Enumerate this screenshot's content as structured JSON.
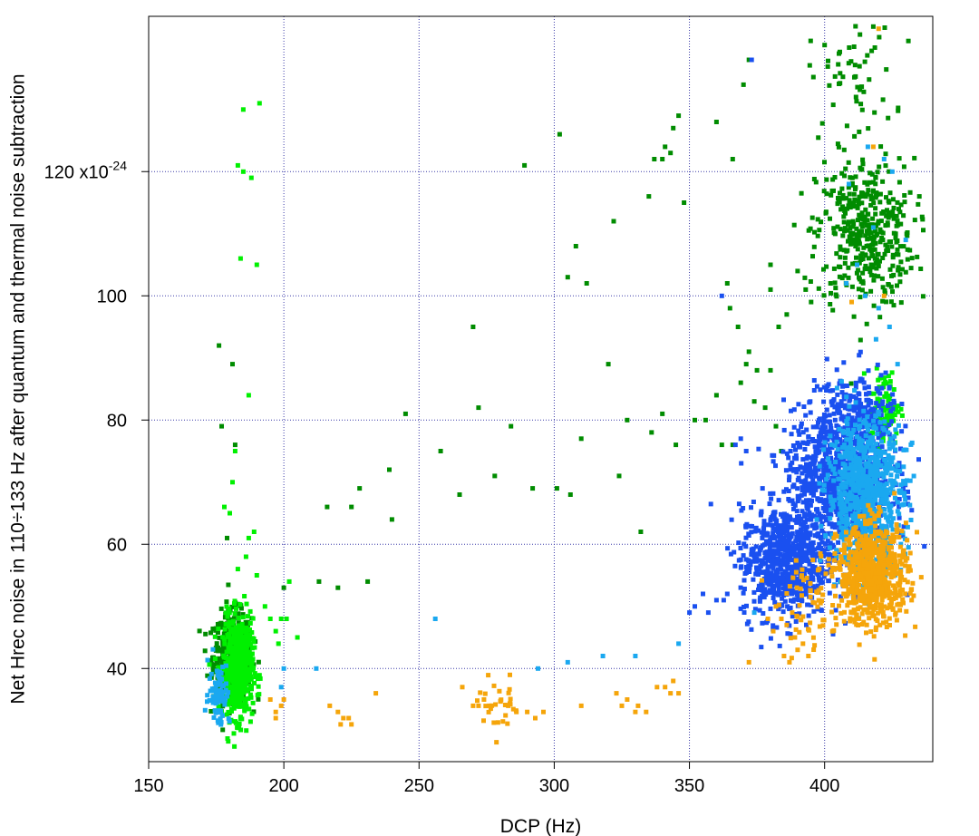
{
  "chart_data": {
    "type": "scatter",
    "title": "",
    "xlabel": "DCP (Hz)",
    "ylabel": "Net Hrec noise in 110÷133 Hz after quantum and thermal noise subtraction",
    "y_multiplier_label": "x10",
    "y_multiplier_exponent": "-24",
    "xlim": [
      150,
      440
    ],
    "ylim": [
      25,
      145
    ],
    "x_ticks": [
      150,
      200,
      250,
      300,
      350,
      400
    ],
    "y_ticks": [
      40,
      60,
      80,
      100,
      120
    ],
    "grid": true,
    "legend": "none",
    "series": [
      {
        "color": "#008c00",
        "clusters": [
          {
            "cx": 181,
            "cy": 42,
            "sx": 3.5,
            "sy": 3.5,
            "n": 500
          },
          {
            "cx": 415,
            "cy": 110,
            "sx": 9,
            "sy": 6,
            "n": 420
          },
          {
            "cx": 410,
            "cy": 135,
            "sx": 8,
            "sy": 5,
            "n": 60
          }
        ],
        "points": [
          [
            289,
            121
          ],
          [
            302,
            126
          ],
          [
            305,
            103
          ],
          [
            308,
            108
          ],
          [
            312,
            102
          ],
          [
            322,
            112
          ],
          [
            335,
            116
          ],
          [
            337,
            122
          ],
          [
            340,
            122
          ],
          [
            343,
            123
          ],
          [
            346,
            129
          ],
          [
            348,
            115
          ],
          [
            344,
            127
          ],
          [
            341,
            124
          ],
          [
            360,
            128
          ],
          [
            366,
            122
          ],
          [
            370,
            134
          ],
          [
            372,
            138
          ],
          [
            364,
            102
          ],
          [
            365,
            98
          ],
          [
            368,
            95
          ],
          [
            372,
            91
          ],
          [
            380,
            101
          ],
          [
            383,
            95
          ],
          [
            386,
            97
          ],
          [
            380,
            88
          ],
          [
            375,
            88
          ],
          [
            369,
            86
          ],
          [
            390,
            104
          ],
          [
            393,
            101
          ],
          [
            395,
            99
          ],
          [
            380,
            105
          ],
          [
            245,
            81
          ],
          [
            258,
            75
          ],
          [
            265,
            68
          ],
          [
            270,
            95
          ],
          [
            272,
            82
          ],
          [
            278,
            71
          ],
          [
            284,
            79
          ],
          [
            292,
            69
          ],
          [
            301,
            69
          ],
          [
            306,
            68
          ],
          [
            310,
            77
          ],
          [
            320,
            89
          ],
          [
            324,
            71
          ],
          [
            327,
            80
          ],
          [
            332,
            62
          ],
          [
            336,
            78
          ],
          [
            340,
            81
          ],
          [
            345,
            76
          ],
          [
            352,
            80
          ],
          [
            356,
            80
          ],
          [
            360,
            84
          ],
          [
            362,
            76
          ],
          [
            366,
            76
          ],
          [
            371,
            89
          ],
          [
            374,
            83
          ],
          [
            378,
            82
          ],
          [
            382,
            79
          ],
          [
            384,
            75
          ],
          [
            200,
            53
          ],
          [
            213,
            54
          ],
          [
            216,
            66
          ],
          [
            220,
            53
          ],
          [
            225,
            66
          ],
          [
            228,
            69
          ],
          [
            231,
            54
          ],
          [
            239,
            72
          ],
          [
            240,
            64
          ],
          [
            176,
            92
          ],
          [
            177,
            79
          ],
          [
            179,
            61
          ],
          [
            181,
            89
          ],
          [
            182,
            76
          ]
        ]
      },
      {
        "color": "#00f000",
        "clusters": [
          {
            "cx": 183,
            "cy": 40,
            "sx": 2.8,
            "sy": 4,
            "n": 600
          },
          {
            "cx": 422,
            "cy": 82,
            "sx": 3,
            "sy": 3,
            "n": 90
          }
        ],
        "points": [
          [
            185,
            130
          ],
          [
            191,
            131
          ],
          [
            183,
            121
          ],
          [
            185,
            120
          ],
          [
            188,
            119
          ],
          [
            184,
            106
          ],
          [
            190,
            105
          ],
          [
            187,
            84
          ],
          [
            182,
            75
          ],
          [
            181,
            70
          ],
          [
            178,
            66
          ],
          [
            180,
            65
          ],
          [
            187,
            61
          ],
          [
            189,
            62
          ],
          [
            195,
            48
          ],
          [
            197,
            46
          ],
          [
            199,
            48
          ],
          [
            201,
            48
          ],
          [
            198,
            44
          ],
          [
            193,
            50
          ],
          [
            205,
            45
          ],
          [
            202,
            54
          ],
          [
            190,
            55
          ],
          [
            186,
            58
          ],
          [
            183,
            56
          ]
        ]
      },
      {
        "color": "#1a50f0",
        "clusters": [
          {
            "cx": 385,
            "cy": 57,
            "sx": 8,
            "sy": 4.5,
            "n": 700
          },
          {
            "cx": 405,
            "cy": 70,
            "sx": 10,
            "sy": 6,
            "n": 950
          },
          {
            "cx": 412,
            "cy": 80,
            "sx": 7,
            "sy": 4,
            "n": 220
          }
        ],
        "points": [
          [
            373,
            138
          ],
          [
            362,
            100
          ],
          [
            360,
            51
          ],
          [
            355,
            52
          ],
          [
            352,
            50
          ],
          [
            350,
            49
          ],
          [
            357,
            49
          ],
          [
            364,
            52
          ],
          [
            367,
            76
          ],
          [
            369,
            77
          ],
          [
            371,
            75
          ],
          [
            390,
            61
          ],
          [
            398,
            60
          ]
        ]
      },
      {
        "color": "#1aa8f0",
        "clusters": [
          {
            "cx": 415,
            "cy": 68,
            "sx": 7,
            "sy": 6,
            "n": 800
          },
          {
            "cx": 176,
            "cy": 36,
            "sx": 2,
            "sy": 2.5,
            "n": 80
          }
        ],
        "points": [
          [
            212,
            40
          ],
          [
            256,
            48
          ],
          [
            294,
            40
          ],
          [
            305,
            41
          ],
          [
            318,
            42
          ],
          [
            330,
            42
          ],
          [
            346,
            44
          ],
          [
            374,
            49
          ],
          [
            200,
            40
          ],
          [
            199,
            37
          ],
          [
            409,
            118
          ],
          [
            416,
            124
          ],
          [
            422,
            122
          ],
          [
            425,
            120
          ],
          [
            418,
            111
          ],
          [
            412,
            105
          ],
          [
            408,
            102
          ],
          [
            420,
            98
          ],
          [
            424,
            95
          ],
          [
            427,
            89
          ],
          [
            419,
            93
          ],
          [
            415,
            100
          ],
          [
            430,
            109
          ]
        ]
      },
      {
        "color": "#f5a50a",
        "clusters": [
          {
            "cx": 418,
            "cy": 55,
            "sx": 6.5,
            "sy": 4,
            "n": 700
          },
          {
            "cx": 395,
            "cy": 50,
            "sx": 6,
            "sy": 3.5,
            "n": 60
          },
          {
            "cx": 280,
            "cy": 34,
            "sx": 4,
            "sy": 2,
            "n": 30
          }
        ],
        "points": [
          [
            195,
            35
          ],
          [
            197,
            33
          ],
          [
            199,
            34
          ],
          [
            197,
            32
          ],
          [
            200,
            35
          ],
          [
            217,
            34
          ],
          [
            220,
            33
          ],
          [
            222,
            32
          ],
          [
            221,
            31
          ],
          [
            224,
            32
          ],
          [
            225,
            31
          ],
          [
            234,
            36
          ],
          [
            266,
            37
          ],
          [
            270,
            34
          ],
          [
            272,
            34
          ],
          [
            274,
            35
          ],
          [
            276,
            34
          ],
          [
            283,
            34
          ],
          [
            286,
            33
          ],
          [
            290,
            33
          ],
          [
            293,
            32
          ],
          [
            296,
            33
          ],
          [
            310,
            34
          ],
          [
            323,
            36
          ],
          [
            325,
            34
          ],
          [
            327,
            35
          ],
          [
            330,
            33
          ],
          [
            331,
            34
          ],
          [
            334,
            33
          ],
          [
            338,
            37
          ],
          [
            341,
            37
          ],
          [
            343,
            36
          ],
          [
            344,
            38
          ],
          [
            346,
            36
          ],
          [
            372,
            41
          ],
          [
            385,
            42
          ],
          [
            387,
            41
          ],
          [
            390,
            43
          ],
          [
            389,
            45
          ],
          [
            392,
            44
          ],
          [
            394,
            42
          ],
          [
            382,
            50
          ],
          [
            384,
            48
          ],
          [
            386,
            47
          ],
          [
            379,
            48
          ],
          [
            381,
            46
          ],
          [
            388,
            49
          ],
          [
            420,
            143
          ],
          [
            418,
            124
          ],
          [
            422,
            100
          ],
          [
            410,
            99
          ]
        ]
      }
    ]
  }
}
